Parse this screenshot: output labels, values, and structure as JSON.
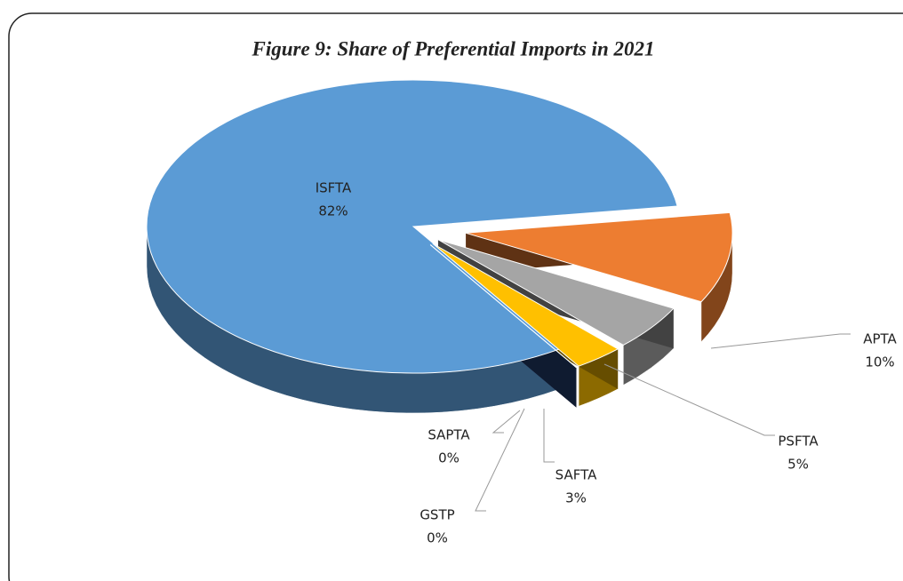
{
  "chart_data": {
    "type": "pie",
    "title": "Figure 9: Share of Preferential Imports in 2021",
    "categories": [
      "ISFTA",
      "APTA",
      "PSFTA",
      "SAFTA",
      "SAPTA",
      "GSTP"
    ],
    "values": [
      82,
      10,
      5,
      3,
      0,
      0
    ],
    "value_labels": [
      "82%",
      "10%",
      "5%",
      "3%",
      "0%",
      "0%"
    ],
    "colors": [
      "#5b9bd5",
      "#ed7d31",
      "#a5a5a5",
      "#ffc000",
      "#4b1e6e",
      "#264478"
    ]
  }
}
